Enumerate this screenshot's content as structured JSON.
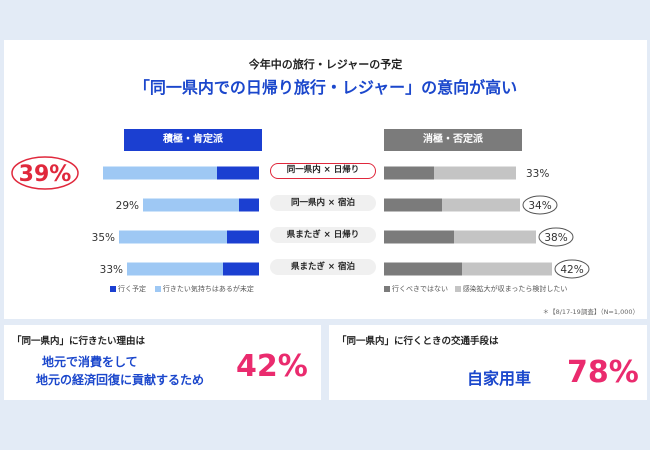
{
  "header": {
    "subtitle": "今年中の旅行・レジャーの予定",
    "title": "「同一県内での日帰り旅行・レジャー」の意向が高い"
  },
  "groups": {
    "positive": "積極・肯定派",
    "negative": "消極・否定派"
  },
  "legend": {
    "go": "行く予定",
    "want": "行きたい気持ちはあるが未定",
    "no": "行くべきではない",
    "wait": "感染拡大が収まったら検討したい"
  },
  "note": "＊【8/17-19調査】（N=1,000）",
  "colors": {
    "go": "#1b3fd1",
    "want": "#9ec8f4",
    "no": "#7b7b7b",
    "wait": "#c4c4c4",
    "highlight": "#e0283c",
    "accent": "#ea2b6e"
  },
  "chart_data": {
    "type": "bar",
    "orientation": "horizontal",
    "categories": [
      "同一県内 × 日帰り",
      "同一県内 × 宿泊",
      "県またぎ × 日帰り",
      "県またぎ × 宿泊"
    ],
    "labels": {
      "positive": [
        "39%",
        "29%",
        "35%",
        "33%"
      ],
      "negative": [
        "33%",
        "34%",
        "38%",
        "42%"
      ]
    },
    "series": [
      {
        "name": "行く予定",
        "group": "positive",
        "values": [
          10.5,
          5,
          8,
          9
        ]
      },
      {
        "name": "行きたい気持ちはあるが未定",
        "group": "positive",
        "values": [
          28.5,
          24,
          27,
          24
        ]
      },
      {
        "name": "行くべきではない",
        "group": "negative",
        "values": [
          12.5,
          14.5,
          17.5,
          19.5
        ]
      },
      {
        "name": "感染拡大が収まったら検討したい",
        "group": "negative",
        "values": [
          20.5,
          19.5,
          20.5,
          22.5
        ]
      }
    ],
    "highlight_category": "同一県内 × 日帰り"
  },
  "reason": {
    "question": "「同一県内」に行きたい理由は",
    "line1": "地元で消費をして",
    "line2": "地元の経済回復に貢献するため",
    "pct": "42%"
  },
  "transport": {
    "question": "「同一県内」に行くときの交通手段は",
    "answer": "自家用車",
    "pct": "78%"
  }
}
